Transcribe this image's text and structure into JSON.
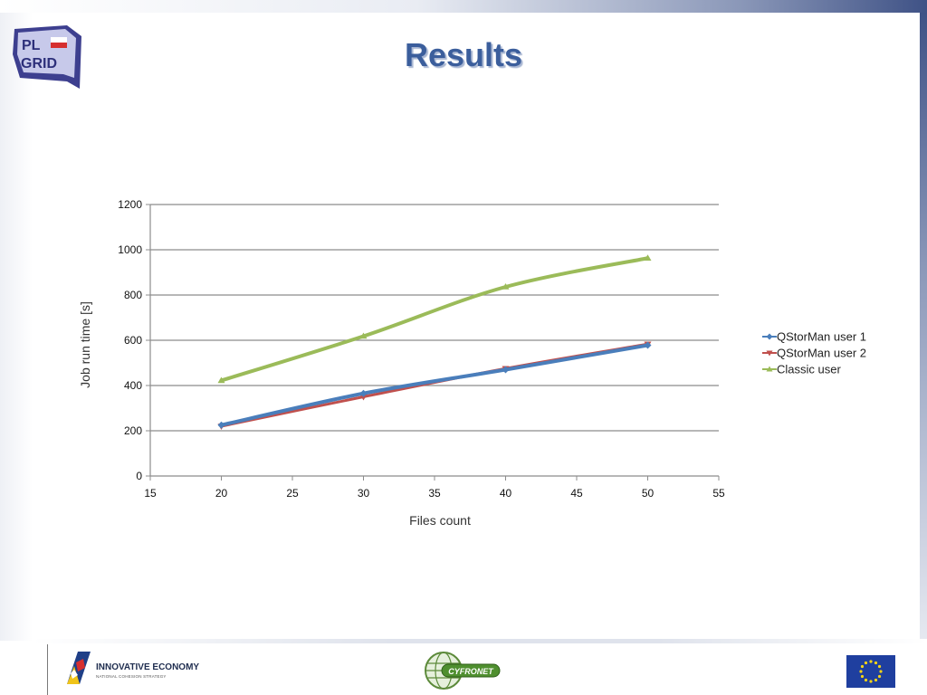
{
  "slide": {
    "title": "Results",
    "footer": {
      "left_name": "INNOVATIVE ECONOMY",
      "left_sub": "NATIONAL COHESION STRATEGY",
      "center_name": "CYFRONET"
    },
    "logo_text": {
      "line1": "PL",
      "line2": "GRID"
    }
  },
  "chart_data": {
    "type": "line",
    "xlabel": "Files count",
    "ylabel": "Job run time [s]",
    "xlim": [
      15,
      55
    ],
    "ylim": [
      0,
      1200
    ],
    "x_ticks": [
      "15",
      "20",
      "25",
      "30",
      "35",
      "40",
      "45",
      "50",
      "55"
    ],
    "y_ticks": [
      "0",
      "200",
      "400",
      "600",
      "800",
      "1000",
      "1200"
    ],
    "grid": "horizontal",
    "legend_position": "right",
    "x": [
      20,
      30,
      40,
      50
    ],
    "series": [
      {
        "name": "QStorMan user 1",
        "values": [
          225,
          365,
          470,
          578
        ],
        "color": "#4a7ebb",
        "marker": "diamond"
      },
      {
        "name": "QStorMan user 2",
        "values": [
          220,
          350,
          475,
          583
        ],
        "color": "#c0504d",
        "marker": "triangle-down"
      },
      {
        "name": "Classic user",
        "values": [
          422,
          618,
          836,
          963
        ],
        "color": "#9bbb59",
        "marker": "triangle-up"
      }
    ]
  }
}
